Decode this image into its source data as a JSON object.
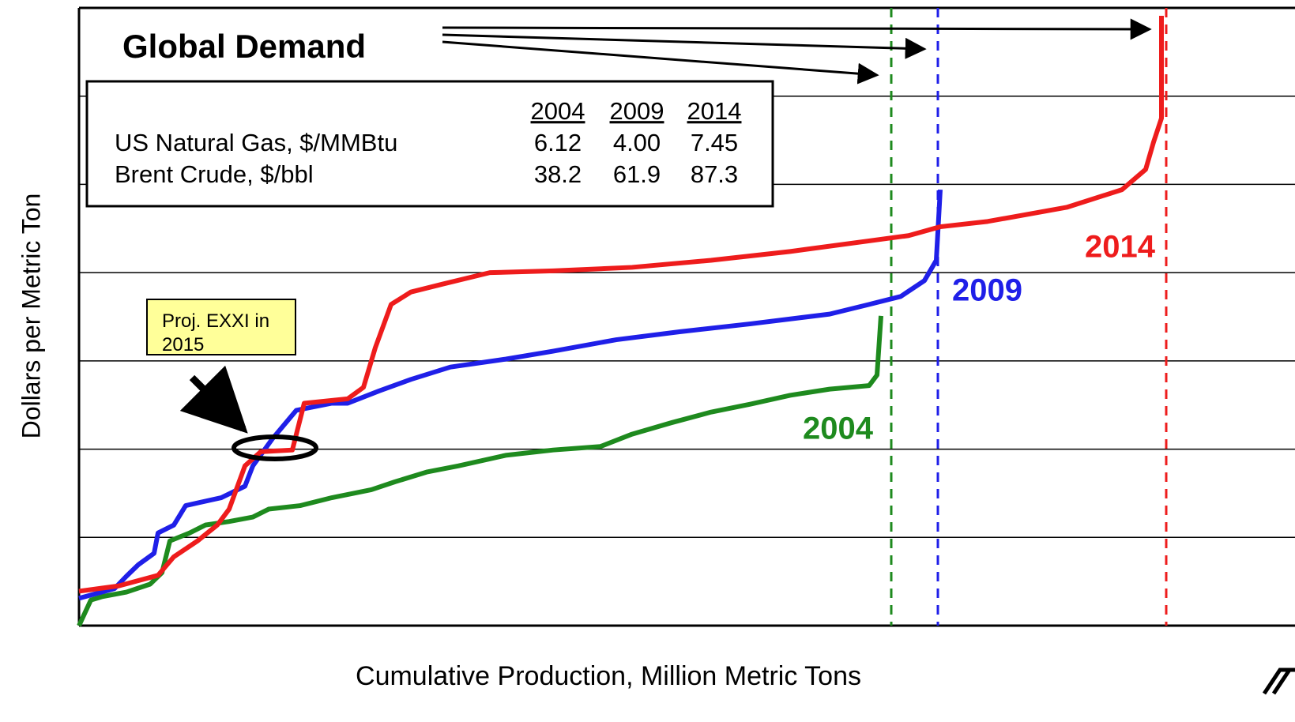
{
  "chart_data": {
    "type": "line",
    "title": "Global Demand",
    "x_label": "Cumulative Production, Million Metric Tons",
    "y_label": "Dollars per Metric Ton",
    "xlim": [
      0,
      1540
    ],
    "ylim": [
      0,
      700
    ],
    "yticks": [
      100,
      200,
      300,
      400,
      500,
      600
    ],
    "grid": true,
    "series": [
      {
        "name": "2004",
        "color": "#1e8a1e",
        "demand": 1028,
        "x": [
          0,
          15,
          30,
          60,
          90,
          105,
          115,
          140,
          160,
          190,
          220,
          240,
          280,
          320,
          370,
          400,
          440,
          480,
          540,
          600,
          660,
          700,
          750,
          800,
          850,
          900,
          950,
          1000,
          1010,
          1015
        ],
        "values": [
          0,
          29,
          33,
          38,
          47,
          60,
          96,
          105,
          114,
          118,
          123,
          132,
          136,
          145,
          154,
          163,
          174,
          181,
          193,
          199,
          203,
          217,
          230,
          242,
          251,
          261,
          268,
          272,
          284,
          351
        ]
      },
      {
        "name": "2009",
        "color": "#1f1fe8",
        "demand": 1087,
        "x": [
          0,
          45,
          60,
          75,
          95,
          100,
          120,
          135,
          180,
          210,
          220,
          245,
          275,
          320,
          340,
          380,
          420,
          470,
          540,
          600,
          680,
          760,
          850,
          950,
          1000,
          1040,
          1070,
          1085,
          1090
        ],
        "values": [
          31,
          42,
          56,
          69,
          82,
          105,
          114,
          136,
          145,
          158,
          181,
          212,
          244,
          252,
          252,
          266,
          279,
          293,
          302,
          311,
          324,
          333,
          342,
          353,
          364,
          373,
          391,
          414,
          494
        ]
      },
      {
        "name": "2014",
        "color": "#ee1c1c",
        "demand": 1376,
        "x": [
          0,
          50,
          100,
          120,
          150,
          175,
          190,
          210,
          230,
          270,
          285,
          340,
          360,
          375,
          395,
          420,
          460,
          520,
          600,
          700,
          800,
          900,
          1000,
          1050,
          1090,
          1150,
          1250,
          1320,
          1350,
          1360,
          1370,
          1370
        ],
        "values": [
          39,
          45,
          57,
          78,
          96,
          114,
          132,
          181,
          197,
          199,
          252,
          257,
          270,
          315,
          364,
          378,
          387,
          400,
          402,
          406,
          414,
          424,
          436,
          442,
          452,
          458,
          474,
          494,
          517,
          548,
          575,
          691
        ]
      }
    ],
    "table": {
      "columns": [
        "2004",
        "2009",
        "2014"
      ],
      "rows": [
        {
          "label": "US Natural Gas, $/MMBtu",
          "values": [
            "6.12",
            "4.00",
            "7.45"
          ]
        },
        {
          "label": "Brent Crude, $/bbl",
          "values": [
            "38.2",
            "61.9",
            "87.3"
          ]
        }
      ]
    },
    "annotation": "Proj. EXXI in 2015"
  }
}
